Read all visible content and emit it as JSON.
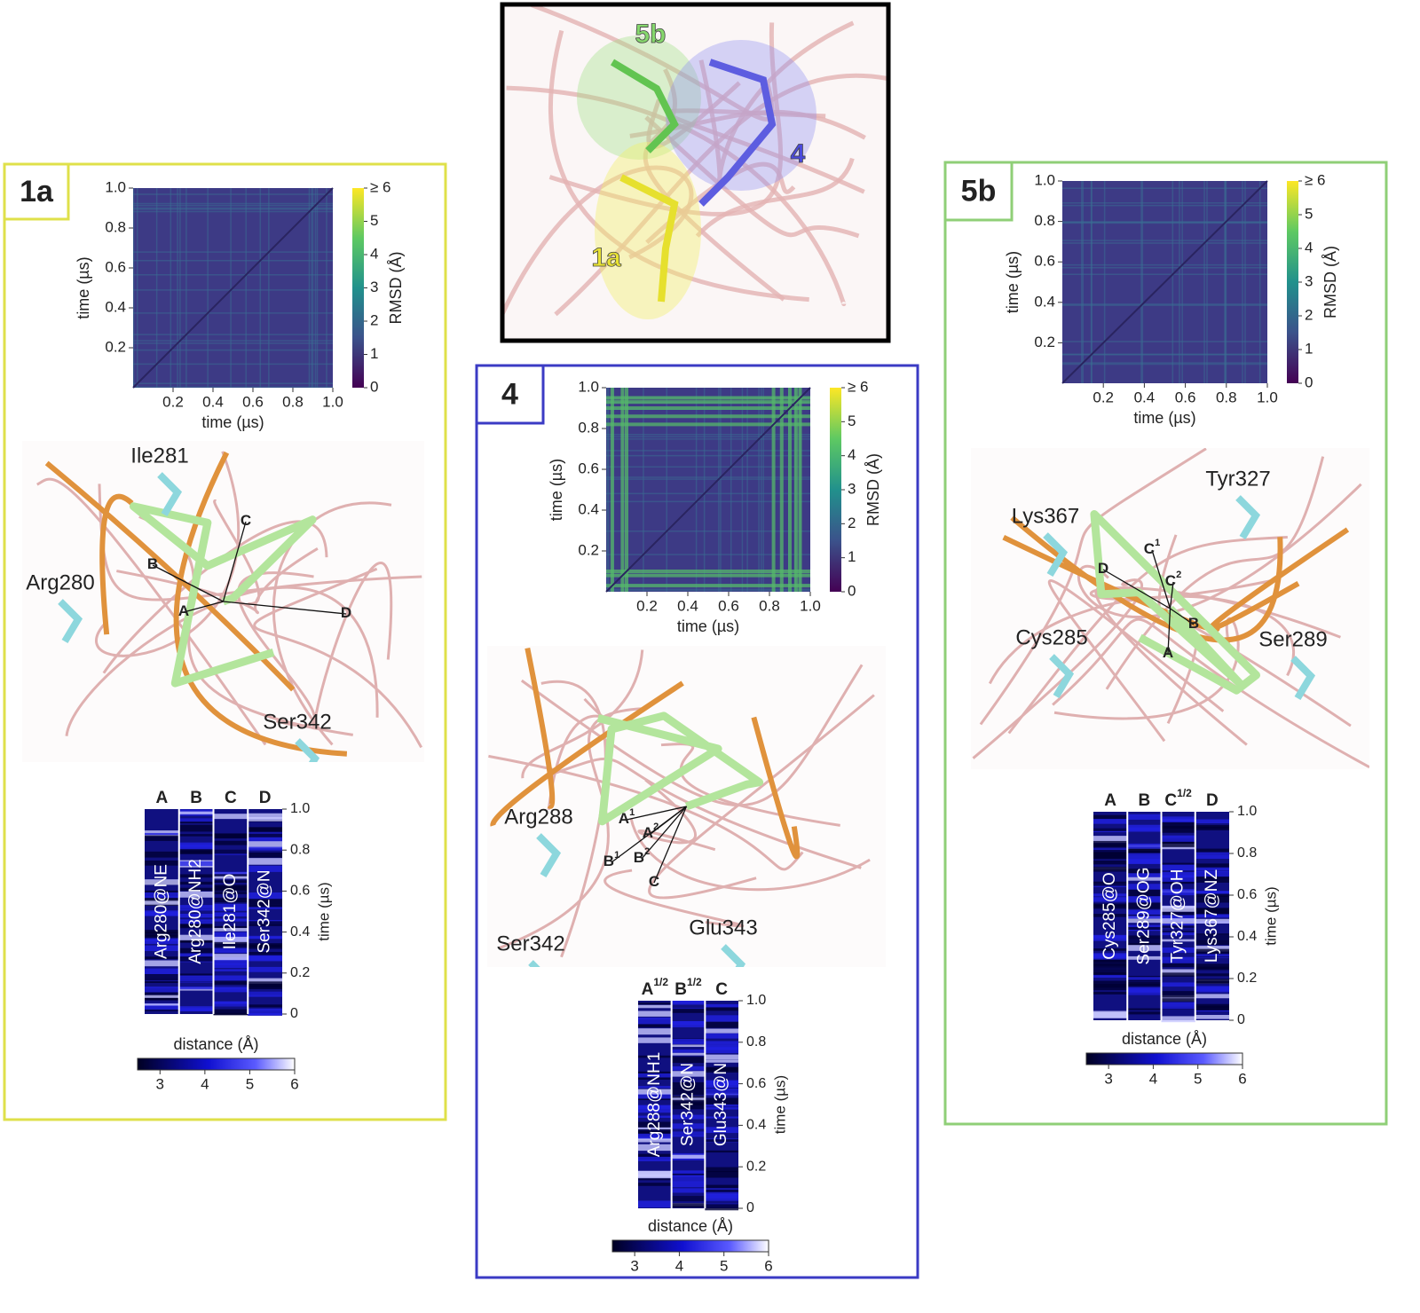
{
  "overview": {
    "labels": [
      "5b",
      "4",
      "1a"
    ]
  },
  "panels": [
    {
      "label": "1a",
      "rmsd_map": {
        "xticks": [
          "0.2",
          "0.4",
          "0.6",
          "0.8",
          "1.0"
        ],
        "yticks": [
          "0.2",
          "0.4",
          "0.6",
          "0.8",
          "1.0"
        ],
        "xlabel": "time (µs)",
        "ylabel": "time (µs)",
        "colorbar_ticks": [
          "0",
          "1",
          "2",
          "3",
          "4",
          "5",
          "≥ 6"
        ],
        "colorbar_label": "RMSD (Å)"
      },
      "structure": {
        "residues": [
          "Ile281",
          "Arg280",
          "Ser342"
        ],
        "contacts": [
          {
            "text": "C"
          },
          {
            "text": "B"
          },
          {
            "text": "A"
          },
          {
            "text": "D"
          }
        ]
      },
      "distance_map": {
        "columns": [
          {
            "header": {
              "text": "A"
            },
            "atom": "Arg280@NE"
          },
          {
            "header": {
              "text": "B"
            },
            "atom": "Arg280@NH2"
          },
          {
            "header": {
              "text": "C"
            },
            "atom": "Ile281@O"
          },
          {
            "header": {
              "text": "D"
            },
            "atom": "Ser342@N"
          }
        ],
        "yticks": [
          "0",
          "0.2",
          "0.4",
          "0.6",
          "0.8",
          "1.0"
        ],
        "ylabel": "time (µs)",
        "colorbar_label": "distance (Å)",
        "colorbar_ticks": [
          "3",
          "4",
          "5",
          "6"
        ]
      }
    },
    {
      "label": "4",
      "rmsd_map": {
        "xticks": [
          "0.2",
          "0.4",
          "0.6",
          "0.8",
          "1.0"
        ],
        "yticks": [
          "0.2",
          "0.4",
          "0.6",
          "0.8",
          "1.0"
        ],
        "xlabel": "time (µs)",
        "ylabel": "time (µs)",
        "colorbar_ticks": [
          "0",
          "1",
          "2",
          "3",
          "4",
          "5",
          "≥ 6"
        ],
        "colorbar_label": "RMSD (Å)"
      },
      "structure": {
        "residues": [
          "Arg288",
          "Ser342",
          "Glu343"
        ],
        "contacts": [
          {
            "text": "A",
            "sup": "1"
          },
          {
            "text": "A",
            "sup": "2"
          },
          {
            "text": "B",
            "sup": "1"
          },
          {
            "text": "B",
            "sup": "2"
          },
          {
            "text": "C"
          }
        ]
      },
      "distance_map": {
        "columns": [
          {
            "header": {
              "text": "A",
              "sup": "1/2"
            },
            "atom": "Arg288@NH1"
          },
          {
            "header": {
              "text": "B",
              "sup": "1/2"
            },
            "atom": "Ser342@N"
          },
          {
            "header": {
              "text": "C"
            },
            "atom": "Glu343@N"
          }
        ],
        "yticks": [
          "0",
          "0.2",
          "0.4",
          "0.6",
          "0.8",
          "1.0"
        ],
        "ylabel": "time (µs)",
        "colorbar_label": "distance (Å)",
        "colorbar_ticks": [
          "3",
          "4",
          "5",
          "6"
        ]
      }
    },
    {
      "label": "5b",
      "rmsd_map": {
        "xticks": [
          "0.2",
          "0.4",
          "0.6",
          "0.8",
          "1.0"
        ],
        "yticks": [
          "0.2",
          "0.4",
          "0.6",
          "0.8",
          "1.0"
        ],
        "xlabel": "time (µs)",
        "ylabel": "time (µs)",
        "colorbar_ticks": [
          "0",
          "1",
          "2",
          "3",
          "4",
          "5",
          "≥ 6"
        ],
        "colorbar_label": "RMSD (Å)"
      },
      "structure": {
        "residues": [
          "Tyr327",
          "Lys367",
          "Cys285",
          "Ser289"
        ],
        "contacts": [
          {
            "text": "C",
            "sup": "1"
          },
          {
            "text": "C",
            "sup": "2"
          },
          {
            "text": "D"
          },
          {
            "text": "B"
          },
          {
            "text": "A"
          }
        ]
      },
      "distance_map": {
        "columns": [
          {
            "header": {
              "text": "A"
            },
            "atom": "Cys285@O"
          },
          {
            "header": {
              "text": "B"
            },
            "atom": "Ser289@OG"
          },
          {
            "header": {
              "text": "C",
              "sup": "1/2"
            },
            "atom": "Tyr327@OH"
          },
          {
            "header": {
              "text": "D"
            },
            "atom": "Lys367@NZ"
          }
        ],
        "yticks": [
          "0",
          "0.2",
          "0.4",
          "0.6",
          "0.8",
          "1.0"
        ],
        "ylabel": "time (µs)",
        "colorbar_label": "distance (Å)",
        "colorbar_ticks": [
          "3",
          "4",
          "5",
          "6"
        ]
      }
    }
  ]
}
